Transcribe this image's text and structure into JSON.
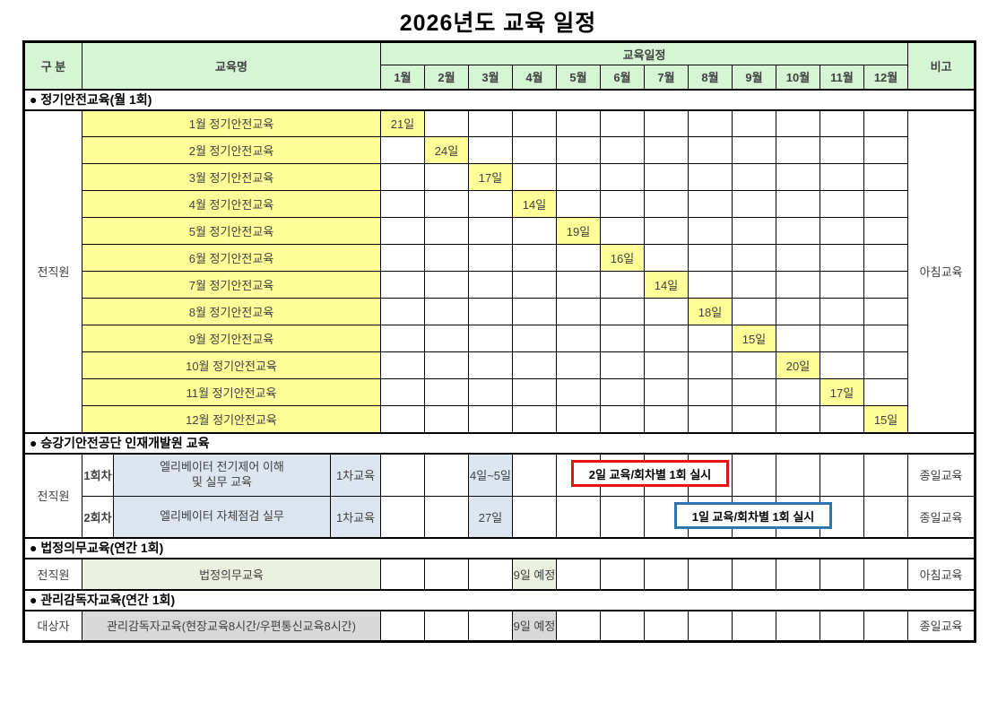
{
  "title": "2026년도 교육 일정",
  "colors": {
    "header_bg": "#d5f5d5",
    "yellow": "#ffff99",
    "blue_cell": "#dce6f1",
    "green_cell": "#ebf1de",
    "gray_cell": "#d9d9d9",
    "red_box_border": "#ee1111",
    "blue_box_border": "#2e75b6"
  },
  "header": {
    "category": "구  분",
    "course_name": "교육명",
    "schedule": "교육일정",
    "months": [
      "1월",
      "2월",
      "3월",
      "4월",
      "5월",
      "6월",
      "7월",
      "8월",
      "9월",
      "10월",
      "11월",
      "12월"
    ],
    "remark": "비고"
  },
  "sections": [
    {
      "id": "regular-safety",
      "title": "● 정기안전교육(월 1회)",
      "group": "전직원",
      "remark": "아침교육",
      "rows": [
        {
          "name": "1월 정기안전교육",
          "month": 1,
          "day": "21일"
        },
        {
          "name": "2월 정기안전교육",
          "month": 2,
          "day": "24일"
        },
        {
          "name": "3월 정기안전교육",
          "month": 3,
          "day": "17일"
        },
        {
          "name": "4월 정기안전교육",
          "month": 4,
          "day": "14일"
        },
        {
          "name": "5월 정기안전교육",
          "month": 5,
          "day": "19일"
        },
        {
          "name": "6월 정기안전교육",
          "month": 6,
          "day": "16일"
        },
        {
          "name": "7월 정기안전교육",
          "month": 7,
          "day": "14일"
        },
        {
          "name": "8월 정기안전교육",
          "month": 8,
          "day": "18일"
        },
        {
          "name": "9월 정기안전교육",
          "month": 9,
          "day": "15일"
        },
        {
          "name": "10월 정기안전교육",
          "month": 10,
          "day": "20일"
        },
        {
          "name": "11월 정기안전교육",
          "month": 11,
          "day": "17일"
        },
        {
          "name": "12월 정기안전교육",
          "month": 12,
          "day": "15일"
        }
      ]
    },
    {
      "id": "koela-hrd",
      "title": "● 승강기안전공단 인재개발원 교육",
      "group": "전직원",
      "rows": [
        {
          "round": "1회차",
          "name": "엘리베이터 전기제어 이해\n및 실무 교육",
          "course": "1차교육",
          "month": 3,
          "day": "4일~5일",
          "note": "2일 교육/회차별 1회 실시",
          "note_color": "red",
          "remark": "종일교육"
        },
        {
          "round": "2회차",
          "name": "엘리베이터 자체점검 실무",
          "course": "1차교육",
          "month": 3,
          "day": "27일",
          "note": "1일 교육/회차별 1회 실시",
          "note_color": "blue",
          "remark": "종일교육"
        }
      ]
    },
    {
      "id": "legal-mandatory",
      "title": "● 법정의무교육(연간 1회)",
      "rows": [
        {
          "group": "전직원",
          "name": "법정의무교육",
          "month": 4,
          "day": "9일 예정",
          "remark": "아침교육"
        }
      ]
    },
    {
      "id": "supervisor",
      "title": "● 관리감독자교육(연간 1회)",
      "rows": [
        {
          "group": "대상자",
          "name": "관리감독자교육(현장교육8시간/우편통신교육8시간)",
          "month": 4,
          "day": "9일 예정",
          "remark": "종일교육"
        }
      ]
    }
  ]
}
